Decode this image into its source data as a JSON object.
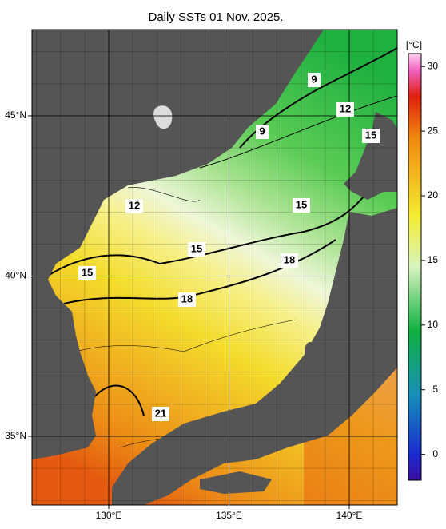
{
  "title": "Daily SSTs 01 Nov. 2025.",
  "map": {
    "lon_ticks": [
      {
        "value": 130,
        "label": "130°E"
      },
      {
        "value": 135,
        "label": "135°E"
      },
      {
        "value": 140,
        "label": "140°E"
      }
    ],
    "lat_ticks": [
      {
        "value": 45,
        "label": "45°N"
      },
      {
        "value": 40,
        "label": "40°N"
      },
      {
        "value": 35,
        "label": "35°N"
      }
    ],
    "contour_labels": [
      9,
      9,
      12,
      12,
      15,
      15,
      15,
      15,
      18,
      18,
      21
    ]
  },
  "colorbar": {
    "unit": "[°C]",
    "range": [
      -2,
      31
    ],
    "ticks": [
      0,
      5,
      10,
      15,
      20,
      25,
      30
    ]
  }
}
